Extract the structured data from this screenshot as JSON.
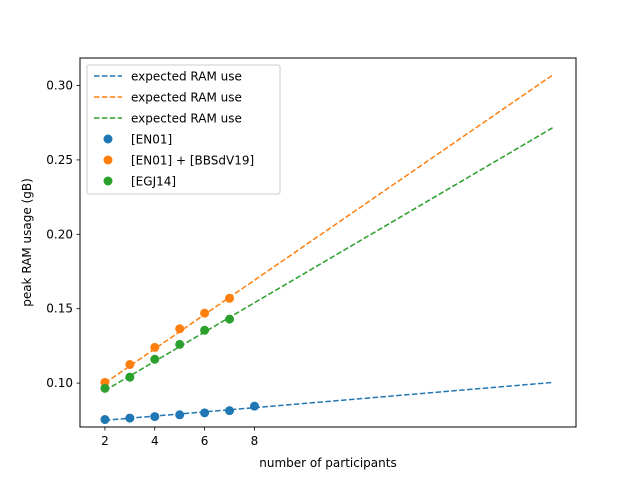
{
  "chart_data": {
    "type": "scatter",
    "xlabel": "number of participants",
    "ylabel": "peak RAM usage (gB)",
    "xlim": [
      1.0,
      20.9
    ],
    "ylim": [
      0.0705,
      0.3185
    ],
    "xticks": [
      2,
      4,
      6,
      8
    ],
    "yticks": [
      0.1,
      0.15,
      0.2,
      0.25,
      0.3
    ],
    "ytick_labels": [
      "0.10",
      "0.15",
      "0.20",
      "0.25",
      "0.30"
    ],
    "grid": false,
    "legend_position": "upper left",
    "series": [
      {
        "name": "[EN01]",
        "color": "#1f77b4",
        "x": [
          2,
          3,
          4,
          5,
          6,
          7,
          8
        ],
        "y": [
          0.0755,
          0.0765,
          0.0775,
          0.0787,
          0.08,
          0.0815,
          0.0845
        ]
      },
      {
        "name": "[EN01] + [BBSdV19]",
        "color": "#ff7f0e",
        "x": [
          2,
          3,
          4,
          5,
          6,
          7
        ],
        "y": [
          0.1005,
          0.1125,
          0.124,
          0.1365,
          0.147,
          0.157
        ]
      },
      {
        "name": "[EGJ14]",
        "color": "#2ca02c",
        "x": [
          2,
          3,
          4,
          5,
          6,
          7
        ],
        "y": [
          0.0965,
          0.104,
          0.116,
          0.126,
          0.1355,
          0.143
        ]
      }
    ],
    "trend_lines": [
      {
        "name": "expected RAM use",
        "color": "#1f77b4",
        "x": [
          2,
          20
        ],
        "y": [
          0.075,
          0.1005
        ]
      },
      {
        "name": "expected RAM use",
        "color": "#ff7f0e",
        "x": [
          2,
          20
        ],
        "y": [
          0.1,
          0.3075
        ]
      },
      {
        "name": "expected RAM use",
        "color": "#2ca02c",
        "x": [
          2,
          20
        ],
        "y": [
          0.095,
          0.272
        ]
      }
    ]
  }
}
